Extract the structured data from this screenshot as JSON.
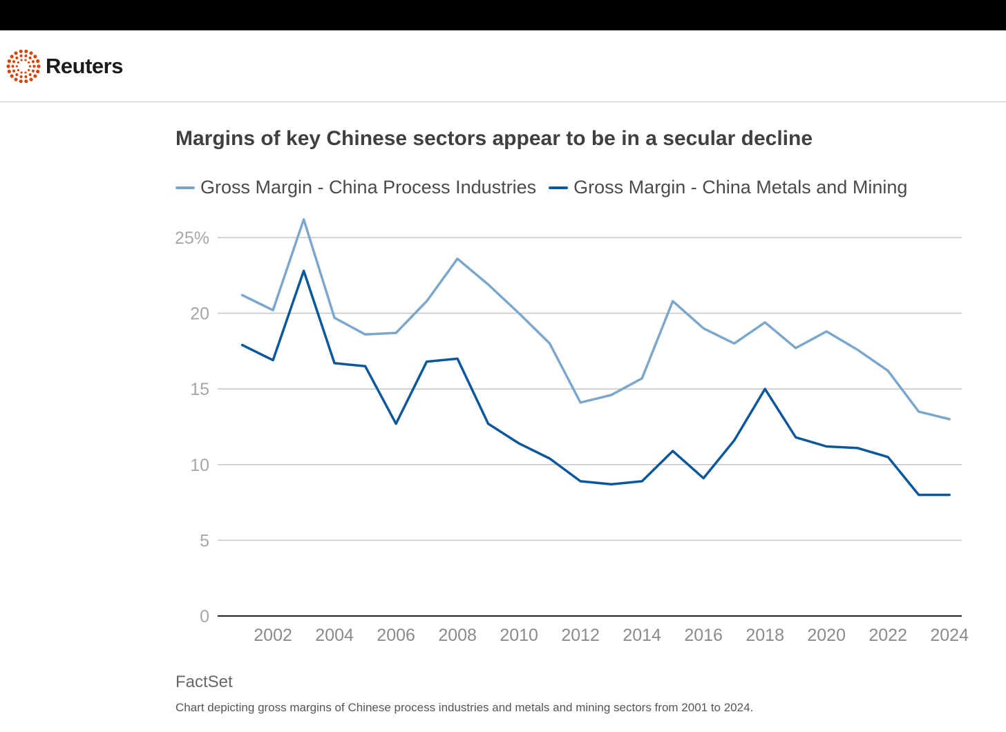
{
  "brand": {
    "name": "Reuters",
    "logo_color": "#dc4300"
  },
  "chart_data": {
    "type": "line",
    "title": "Margins of key Chinese sectors appear to be in a secular decline",
    "xlabel": "",
    "ylabel": "",
    "x": [
      2001,
      2002,
      2003,
      2004,
      2005,
      2006,
      2007,
      2008,
      2009,
      2010,
      2011,
      2012,
      2013,
      2014,
      2015,
      2016,
      2017,
      2018,
      2019,
      2020,
      2021,
      2022,
      2023,
      2024
    ],
    "xlim": [
      2000.2,
      2024.4
    ],
    "ylim": [
      0,
      25
    ],
    "xticks": [
      2002,
      2004,
      2006,
      2008,
      2010,
      2012,
      2014,
      2016,
      2018,
      2020,
      2022,
      2024
    ],
    "xtick_labels": [
      "2002",
      "2004",
      "2006",
      "2008",
      "2010",
      "2012",
      "2014",
      "2016",
      "2018",
      "2020",
      "2022",
      "2024"
    ],
    "yticks": [
      0,
      5,
      10,
      15,
      20,
      25
    ],
    "ytick_labels": [
      "0",
      "5",
      "10",
      "15",
      "20",
      "25%"
    ],
    "grid": true,
    "legend_position": "top-left",
    "series": [
      {
        "name": "Gross Margin - China Process Industries",
        "color": "#7aa7cb",
        "values": [
          21.2,
          20.2,
          26.2,
          19.7,
          18.6,
          18.7,
          20.8,
          23.6,
          21.9,
          20.0,
          18.0,
          14.1,
          14.6,
          15.7,
          20.8,
          19.0,
          18.0,
          19.4,
          17.7,
          18.8,
          17.6,
          16.2,
          13.5,
          13.0
        ]
      },
      {
        "name": "Gross Margin - China Metals and Mining",
        "color": "#0b579b",
        "values": [
          17.9,
          16.9,
          22.8,
          16.7,
          16.5,
          12.7,
          16.8,
          17.0,
          12.7,
          11.4,
          10.4,
          8.9,
          8.7,
          8.9,
          10.9,
          9.1,
          11.6,
          15.0,
          11.8,
          11.2,
          11.1,
          10.5,
          8.0,
          8.0
        ]
      }
    ]
  },
  "footer": {
    "source": "FactSet",
    "caption": "Chart depicting gross margins of Chinese process industries and metals and mining sectors from 2001 to 2024."
  }
}
